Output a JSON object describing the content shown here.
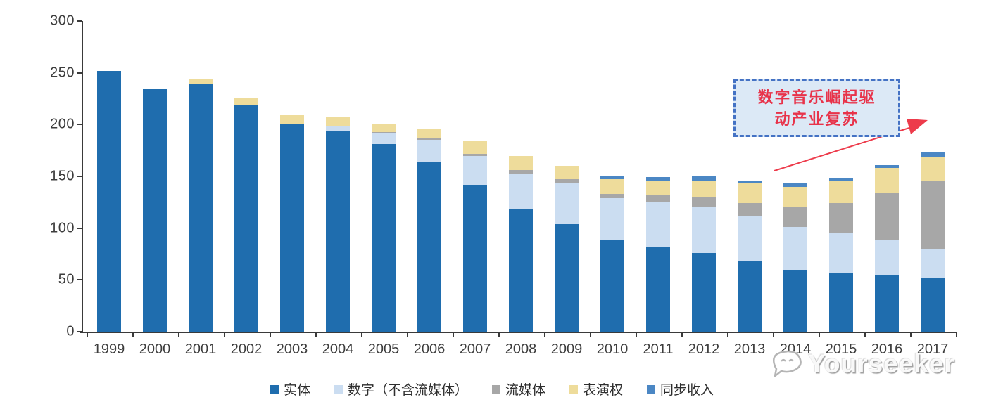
{
  "chart_data": {
    "type": "bar",
    "stacked": true,
    "categories": [
      "1999",
      "2000",
      "2001",
      "2002",
      "2003",
      "2004",
      "2005",
      "2006",
      "2007",
      "2008",
      "2009",
      "2010",
      "2011",
      "2012",
      "2013",
      "2014",
      "2015",
      "2016",
      "2017"
    ],
    "series": [
      {
        "name": "实体",
        "color": "#1F6DAE",
        "values": [
          252,
          234,
          239,
          219,
          201,
          194,
          181,
          164,
          142,
          119,
          104,
          89,
          82,
          76,
          68,
          60,
          57,
          55,
          52
        ]
      },
      {
        "name": "数字（不含流媒体）",
        "color": "#CBDDF1",
        "values": [
          0,
          0,
          0,
          0,
          0,
          5,
          11,
          21,
          28,
          34,
          39,
          40,
          43,
          44,
          43,
          41,
          39,
          33,
          28
        ]
      },
      {
        "name": "流媒体",
        "color": "#A7A7A7",
        "values": [
          0,
          0,
          0,
          0,
          0,
          0,
          1,
          2,
          2,
          3,
          4,
          4,
          7,
          10,
          13,
          19,
          28,
          46,
          66
        ]
      },
      {
        "name": "表演权",
        "color": "#EEDC9B",
        "values": [
          0,
          0,
          5,
          7,
          8,
          9,
          8,
          9,
          12,
          14,
          13,
          14,
          14,
          16,
          19,
          20,
          21,
          24,
          23
        ]
      },
      {
        "name": "同步收入",
        "color": "#4B87C4",
        "values": [
          0,
          0,
          0,
          0,
          0,
          0,
          0,
          0,
          0,
          0,
          0,
          3,
          3,
          4,
          3,
          3,
          3,
          3,
          4
        ]
      }
    ],
    "title": "",
    "xlabel": "",
    "ylabel": "",
    "ylim": [
      0,
      300
    ],
    "y_ticks": [
      0,
      50,
      100,
      150,
      200,
      250,
      300
    ],
    "grid": false,
    "legend_position": "bottom"
  },
  "annotation": {
    "line1": "数字音乐崛起驱",
    "line2": "动产业复苏",
    "border_color": "#4472C4",
    "fill_color": "#DCE9F6",
    "text_color": "#E8334A",
    "arrow_color": "#ED3B4B"
  },
  "watermark": {
    "text": "Yourseeker"
  },
  "axis": {
    "line_color": "#3A3A3A",
    "label_color": "#3D3D3D"
  }
}
